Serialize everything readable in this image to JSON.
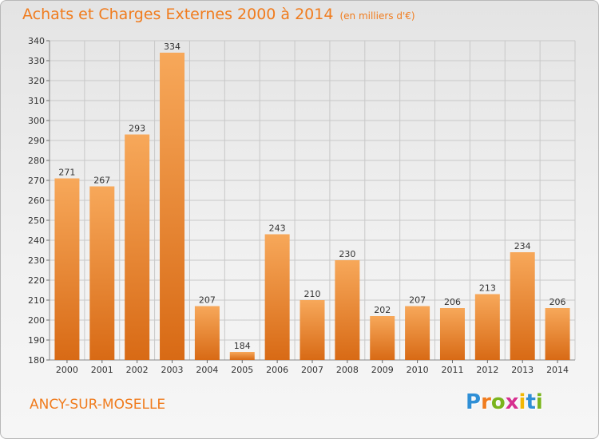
{
  "header": {
    "title": "Achats et Charges Externes 2000 à 2014",
    "subtitle": "(en milliers d'€)"
  },
  "footer": {
    "town": "ANCY-SUR-MOSELLE",
    "logo_letters": [
      "P",
      "r",
      "o",
      "x",
      "i",
      "t",
      "i"
    ],
    "logo_colors": [
      "#2f8fd6",
      "#f07c1e",
      "#7ab41d",
      "#d62f8f",
      "#f2b705",
      "#2f8fd6",
      "#7ab41d"
    ]
  },
  "colors": {
    "bar_light": "#f7a85a",
    "bar_dark": "#d86a15",
    "title": "#f07c1e",
    "grid": "#c8c8c8"
  },
  "chart_data": {
    "type": "bar",
    "title": "Achats et Charges Externes 2000 à 2014",
    "categories": [
      "2000",
      "2001",
      "2002",
      "2003",
      "2004",
      "2005",
      "2006",
      "2007",
      "2008",
      "2009",
      "2010",
      "2011",
      "2012",
      "2013",
      "2014"
    ],
    "values": [
      271,
      267,
      293,
      334,
      207,
      184,
      243,
      210,
      230,
      202,
      207,
      206,
      213,
      234,
      206
    ],
    "ylim": [
      180,
      340
    ],
    "yticks": [
      180,
      190,
      200,
      210,
      220,
      230,
      240,
      250,
      260,
      270,
      280,
      290,
      300,
      310,
      320,
      330,
      340
    ],
    "grid": true,
    "xlabel": "",
    "ylabel": ""
  }
}
